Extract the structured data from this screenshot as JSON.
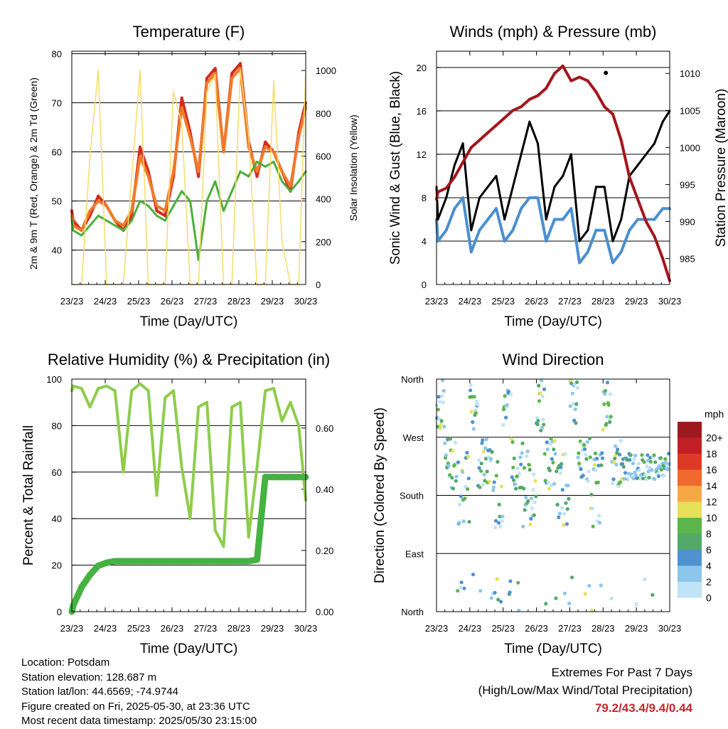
{
  "time_ticks": [
    "23/23",
    "24/23",
    "25/23",
    "26/23",
    "27/23",
    "28/23",
    "29/23",
    "30/23"
  ],
  "time_axis_label": "Time (Day/UTC)",
  "chart_data": [
    {
      "type": "line",
      "title": "Temperature (F)",
      "xlabel": "Time (Day/UTC)",
      "ylabel": "2m & 9m T (Red, Orange) & 2m Td (Green)",
      "y2label": "Solar Insolation (Yellow)",
      "ylim": [
        33,
        80.5
      ],
      "y2lim": [
        0,
        1090
      ],
      "yticks": [
        40,
        50,
        60,
        70,
        80
      ],
      "y2ticks": [
        0,
        200,
        400,
        600,
        800,
        1000
      ],
      "x": [
        "23/23",
        "24/00",
        "24/06",
        "24/12",
        "24/18",
        "25/00",
        "25/06",
        "25/12",
        "25/18",
        "26/00",
        "26/06",
        "26/12",
        "26/18",
        "27/00",
        "27/06",
        "27/12",
        "27/18",
        "28/00",
        "28/06",
        "28/12",
        "28/18",
        "29/00",
        "29/06",
        "29/12",
        "29/18",
        "30/00",
        "30/06",
        "30/12",
        "30/18",
        "30/23"
      ],
      "series": [
        {
          "name": "2m T",
          "color": "#d42a1e",
          "values": [
            48,
            46,
            44,
            47,
            51,
            49,
            46,
            44,
            47,
            61,
            56,
            48,
            47,
            55,
            71,
            64,
            55,
            75,
            77,
            60,
            76,
            78,
            62,
            55,
            62,
            60,
            56,
            52,
            64,
            70
          ]
        },
        {
          "name": "9m T",
          "color": "#f07b2a",
          "values": [
            47,
            45,
            44,
            48,
            50,
            49,
            46,
            45,
            48,
            59,
            55,
            49,
            48,
            56,
            69,
            63,
            56,
            74,
            76,
            60,
            75,
            77,
            61,
            56,
            61,
            60,
            56,
            53,
            63,
            69
          ]
        },
        {
          "name": "2m Td",
          "color": "#4caf3c",
          "values": [
            46,
            44,
            43,
            45,
            47,
            46,
            45,
            44,
            46,
            50,
            49,
            47,
            46,
            49,
            52,
            50,
            38,
            50,
            54,
            48,
            52,
            56,
            55,
            58,
            57,
            58,
            54,
            52,
            54,
            56
          ]
        },
        {
          "name": "Solar Insolation",
          "color": "#f4dc6a",
          "axis": "right",
          "values": [
            0,
            0,
            0,
            600,
            1000,
            0,
            0,
            0,
            500,
            1000,
            0,
            0,
            0,
            900,
            750,
            0,
            0,
            900,
            980,
            0,
            0,
            1000,
            700,
            0,
            0,
            950,
            200,
            0,
            0,
            1000
          ]
        }
      ]
    },
    {
      "type": "line",
      "title": "Winds (mph) & Pressure (mb)",
      "xlabel": "Time (Day/UTC)",
      "ylabel": "Sonic Wind & Gust (Blue, Black)",
      "y2label": "Station Pressure (Maroon)",
      "ylim": [
        0,
        21.5
      ],
      "y2lim": [
        981.5,
        1013
      ],
      "yticks": [
        0,
        4,
        8,
        12,
        16,
        20
      ],
      "y2ticks": [
        985,
        990,
        995,
        1000,
        1005,
        1010
      ],
      "x": [
        "23/23",
        "24/00",
        "24/06",
        "24/12",
        "24/18",
        "25/00",
        "25/06",
        "25/12",
        "25/18",
        "26/00",
        "26/06",
        "26/12",
        "26/18",
        "27/00",
        "27/06",
        "27/12",
        "27/18",
        "28/00",
        "28/06",
        "28/12",
        "28/18",
        "29/00",
        "29/06",
        "29/12",
        "29/18",
        "30/00",
        "30/06",
        "30/12",
        "30/18",
        "30/23"
      ],
      "series": [
        {
          "name": "Sonic Wind",
          "color": "#4a8fd0",
          "values": [
            6,
            4,
            5,
            7,
            8,
            3,
            5,
            6,
            7,
            4,
            5,
            7,
            8,
            8,
            4,
            6,
            6,
            7,
            2,
            3,
            5,
            5,
            2,
            3,
            5,
            6,
            6,
            6,
            7,
            7
          ]
        },
        {
          "name": "Gust",
          "color": "#000000",
          "values": [
            9,
            6,
            8,
            11,
            13,
            5,
            8,
            9,
            10,
            6,
            9,
            12,
            15,
            13,
            6,
            9,
            10,
            12,
            4,
            5,
            9,
            9,
            4,
            6,
            10,
            11,
            12,
            13,
            15,
            16
          ]
        },
        {
          "name": "Station Pressure",
          "color": "#a3161c",
          "axis": "right",
          "values": [
            993,
            994,
            994.5,
            996,
            998,
            1000,
            1001,
            1002,
            1003,
            1004,
            1005,
            1005.5,
            1006.5,
            1007,
            1008,
            1010,
            1011,
            1009,
            1009.5,
            1009,
            1007.5,
            1005.5,
            1004.5,
            1001,
            996,
            993,
            990,
            988,
            985,
            982
          ]
        }
      ],
      "annotations": [
        {
          "x": "29/01",
          "y": 19.5,
          "label": ""
        }
      ]
    },
    {
      "type": "line",
      "title": "Relative Humidity (%) & Precipitation (in)",
      "xlabel": "Time (Day/UTC)",
      "ylabel": "Percent & Total Rainfall",
      "ylim": [
        0,
        100
      ],
      "y2lim": [
        0,
        0.76
      ],
      "yticks": [
        0,
        20,
        40,
        60,
        80,
        100
      ],
      "y2ticks": [
        "0.00",
        "0.20",
        "0.40",
        "0.60"
      ],
      "x": [
        "23/23",
        "24/00",
        "24/06",
        "24/12",
        "24/18",
        "25/00",
        "25/06",
        "25/12",
        "25/18",
        "26/00",
        "26/06",
        "26/12",
        "26/18",
        "27/00",
        "27/06",
        "27/12",
        "27/18",
        "28/00",
        "28/06",
        "28/12",
        "28/18",
        "29/00",
        "29/06",
        "29/12",
        "29/18",
        "30/00",
        "30/06",
        "30/12",
        "30/18",
        "30/23"
      ],
      "series": [
        {
          "name": "RH",
          "color": "#8fcc4c",
          "values": [
            95,
            97,
            96,
            88,
            96,
            97,
            95,
            60,
            95,
            98,
            95,
            50,
            92,
            95,
            62,
            40,
            88,
            90,
            35,
            28,
            88,
            90,
            32,
            62,
            95,
            96,
            82,
            90,
            80,
            48
          ]
        },
        {
          "name": "Precip",
          "color": "#45b242",
          "axis": "right",
          "values": [
            0.0,
            0.02,
            0.08,
            0.12,
            0.15,
            0.16,
            0.165,
            0.165,
            0.165,
            0.165,
            0.165,
            0.165,
            0.165,
            0.165,
            0.165,
            0.165,
            0.165,
            0.165,
            0.165,
            0.165,
            0.165,
            0.165,
            0.165,
            0.17,
            0.44,
            0.44,
            0.44,
            0.44,
            0.44,
            0.44
          ]
        }
      ]
    },
    {
      "type": "scatter",
      "title": "Wind Direction",
      "xlabel": "Time (Day/UTC)",
      "ylabel": "Direction (Colored By Speed)",
      "yticks": [
        "North",
        "East",
        "South",
        "West",
        "North"
      ],
      "ylim": [
        0,
        360
      ],
      "colorbar": {
        "title": "mph",
        "labels": [
          "0",
          "2",
          "4",
          "6",
          "8",
          "10",
          "12",
          "14",
          "16",
          "18",
          "20+"
        ],
        "colors": [
          "#bfe3f7",
          "#8cc6ec",
          "#4e92cf",
          "#53a86a",
          "#5cb54a",
          "#e6e05a",
          "#f6a847",
          "#ef6a2f",
          "#dc3a26",
          "#c12126",
          "#9c1a1e"
        ]
      }
    }
  ],
  "info": {
    "location": "Location: Potsdam",
    "elevation": "Station elevation: 128.687 m",
    "latlon": "Station lat/lon: 44.6569; -74.9744",
    "created": "Figure created on Fri, 2025-05-30, at 23:36 UTC",
    "recent": "Most recent data timestamp: 2025/05/30 23:15:00"
  },
  "extremes": {
    "heading": "Extremes For Past 7 Days",
    "subheading": "(High/Low/Max Wind/Total Precipitation)",
    "value": "79.2/43.4/9.4/0.44"
  }
}
